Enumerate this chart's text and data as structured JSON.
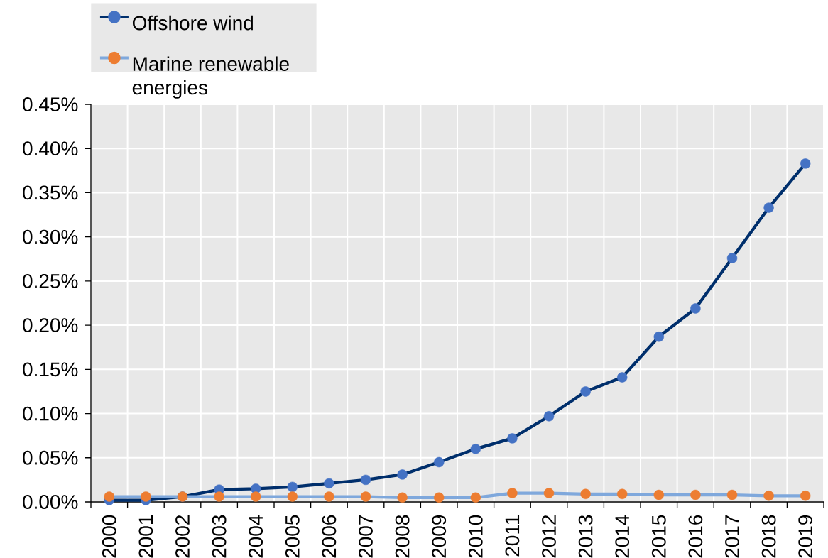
{
  "chart_data": {
    "type": "line",
    "categories": [
      "2000",
      "2001",
      "2002",
      "2003",
      "2004",
      "2005",
      "2006",
      "2007",
      "2008",
      "2009",
      "2010",
      "2011",
      "2012",
      "2013",
      "2014",
      "2015",
      "2016",
      "2017",
      "2018",
      "2019"
    ],
    "series": [
      {
        "name": "Offshore wind",
        "color": "#002f6c",
        "colors": [
          "#4472c4",
          "#4472c4",
          "#4472c4",
          "#4472c4",
          "#4472c4",
          "#4472c4",
          "#4472c4",
          "#4472c4",
          "#4472c4",
          "#4472c4",
          "#4472c4",
          "#4472c4",
          "#4472c4",
          "#4472c4",
          "#4472c4",
          "#4472c4",
          "#4472c4",
          "#4472c4",
          "#4472c4",
          "#4472c4"
        ],
        "values": [
          0.002,
          0.002,
          0.006,
          0.014,
          0.015,
          0.017,
          0.021,
          0.025,
          0.031,
          0.045,
          0.06,
          0.072,
          0.097,
          0.125,
          0.141,
          0.187,
          0.219,
          0.276,
          0.333,
          0.383
        ]
      },
      {
        "name": "Marine renewable energies",
        "color": "#7fa8dc",
        "colors": [
          "#ed7d31",
          "#ed7d31",
          "#ed7d31",
          "#ed7d31",
          "#ed7d31",
          "#ed7d31",
          "#ed7d31",
          "#ed7d31",
          "#ed7d31",
          "#ed7d31",
          "#ed7d31",
          "#ed7d31",
          "#ed7d31",
          "#ed7d31",
          "#ed7d31",
          "#ed7d31",
          "#ed7d31",
          "#ed7d31",
          "#ed7d31",
          "#ed7d31"
        ],
        "values": [
          0.006,
          0.006,
          0.006,
          0.006,
          0.006,
          0.006,
          0.006,
          0.006,
          0.005,
          0.005,
          0.005,
          0.01,
          0.01,
          0.009,
          0.009,
          0.008,
          0.008,
          0.008,
          0.007,
          0.007
        ]
      }
    ],
    "ylim": [
      0,
      0.45
    ],
    "yticks": [
      {
        "value": 0,
        "label": "0.00%"
      },
      {
        "value": 0.05,
        "label": "0.05%"
      },
      {
        "value": 0.1,
        "label": "0.10%"
      },
      {
        "value": 0.15,
        "label": "0.15%"
      },
      {
        "value": 0.2,
        "label": "0.20%"
      },
      {
        "value": 0.25,
        "label": "0.25%"
      },
      {
        "value": 0.3,
        "label": "0.30%"
      },
      {
        "value": 0.35,
        "label": "0.35%"
      },
      {
        "value": 0.4,
        "label": "0.40%"
      },
      {
        "value": 0.45,
        "label": "0.45%"
      }
    ],
    "grid": true,
    "legend": "top left",
    "marker": "circle",
    "line_style": "solid"
  }
}
